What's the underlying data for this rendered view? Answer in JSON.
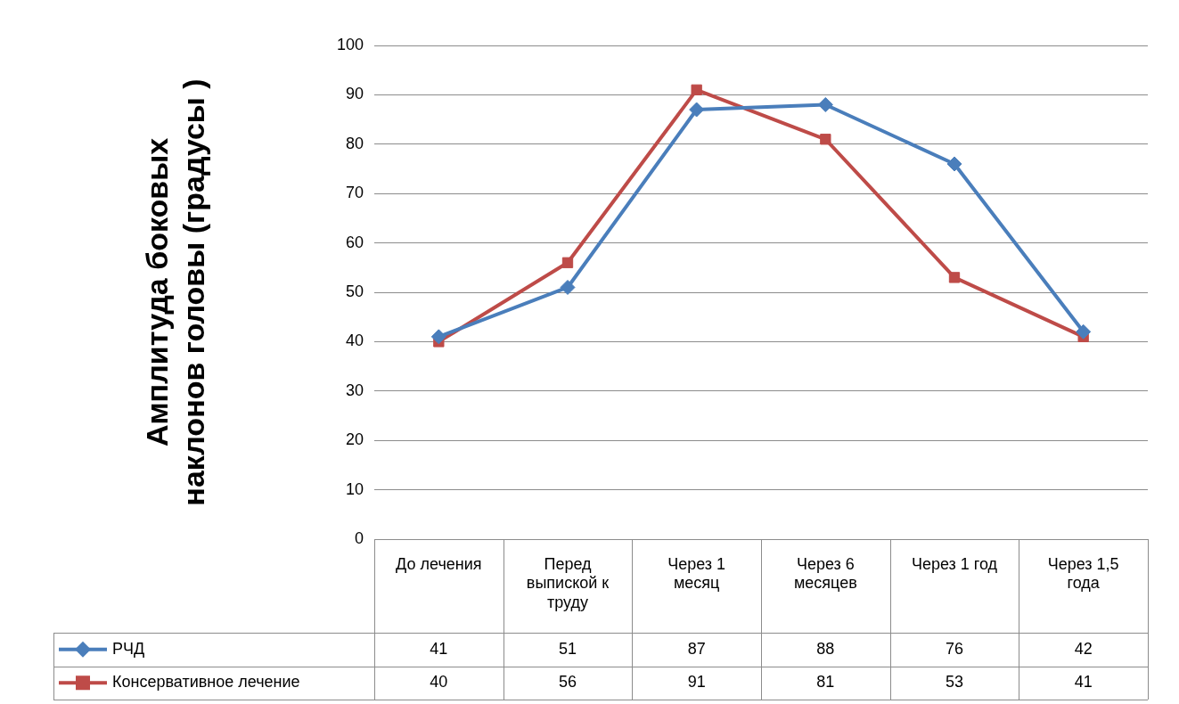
{
  "chart_data": {
    "type": "line",
    "ylabel": "Амплитуда боковых наклонов головы (градусы )",
    "categories": [
      "До лечения",
      "Перед выпиской к труду",
      "Через 1 месяц",
      "Через 6 месяцев",
      "Через 1 год",
      "Через 1,5 года"
    ],
    "series": [
      {
        "name": "РЧД",
        "color": "#4a7ebb",
        "marker": "diamond",
        "values": [
          41,
          51,
          87,
          88,
          76,
          42
        ]
      },
      {
        "name": "Консервативное лечение",
        "color": "#be4b48",
        "marker": "square",
        "values": [
          40,
          56,
          91,
          81,
          53,
          41
        ]
      }
    ],
    "ylim": [
      0,
      100
    ],
    "yticks": [
      0,
      10,
      20,
      30,
      40,
      50,
      60,
      70,
      80,
      90,
      100
    ],
    "grid": "y",
    "legend": "bottom",
    "data_labels": true,
    "line_style": "solid"
  }
}
